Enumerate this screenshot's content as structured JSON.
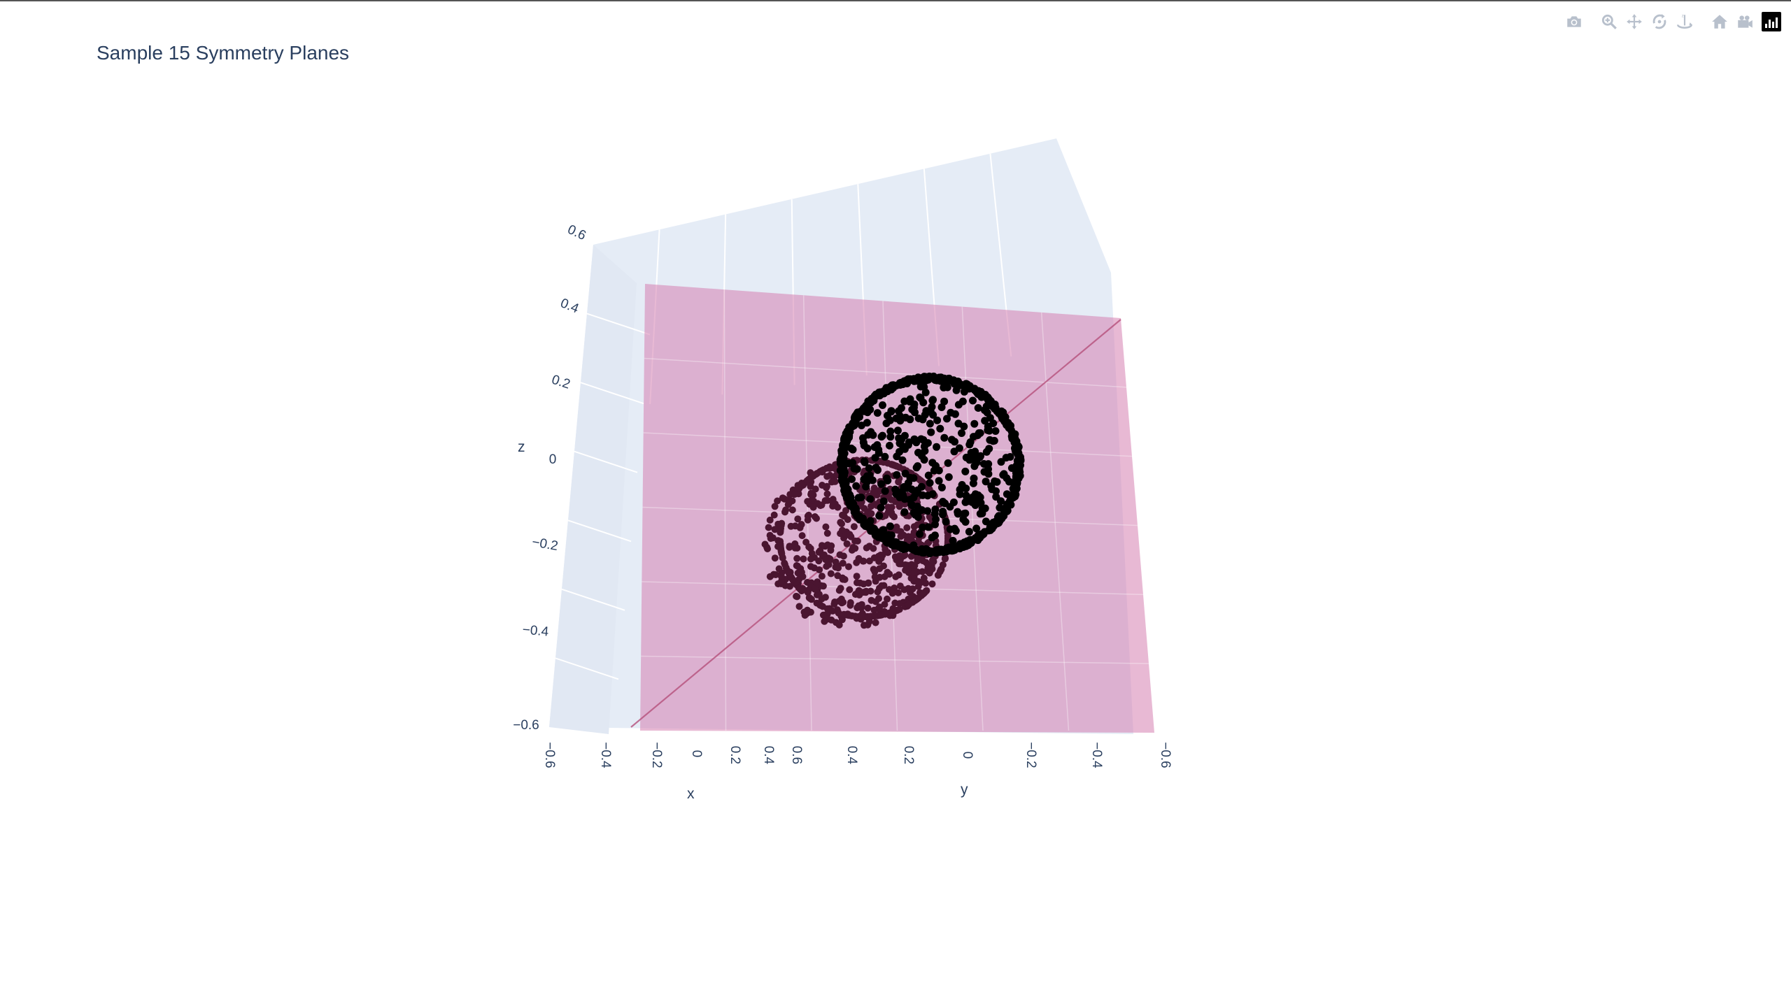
{
  "title": "Sample 15 Symmetry Planes",
  "modebar": {
    "buttons": [
      {
        "name": "camera-icon",
        "title": "Download plot as a png"
      },
      {
        "name": "zoom-icon",
        "title": "Zoom"
      },
      {
        "name": "pan-icon",
        "title": "Pan"
      },
      {
        "name": "orbit-rotation-icon",
        "title": "Orbital rotation"
      },
      {
        "name": "turntable-rotation-icon",
        "title": "Turntable rotation"
      },
      {
        "name": "home-icon",
        "title": "Reset camera to default"
      },
      {
        "name": "camera-video-icon",
        "title": "Reset camera to last save"
      },
      {
        "name": "plotly-logo-icon",
        "title": "Produced with Plotly"
      }
    ]
  },
  "colors": {
    "background": "#ffffff",
    "scene_bg": "#e5ecf6",
    "gridline": "#ffffff",
    "text": "#2a3f5f",
    "plane": "#d67fb0",
    "points_front": "#000000",
    "points_back": "#4a1530",
    "diagonal_line": "#b5507a"
  },
  "chart_data": {
    "type": "scatter3d",
    "title": "Sample 15 Symmetry Planes",
    "axes": {
      "x": {
        "title": "x",
        "range": [
          -0.6,
          0.6
        ],
        "ticks": [
          "−0.6",
          "−0.4",
          "−0.2",
          "0",
          "0.2",
          "0.4",
          "0.6"
        ]
      },
      "y": {
        "title": "y",
        "range": [
          -0.6,
          0.6
        ],
        "ticks": [
          "0.4",
          "0.2",
          "0",
          "−0.2",
          "−0.4",
          "−0.6"
        ]
      },
      "z": {
        "title": "z",
        "range": [
          -0.6,
          0.6
        ],
        "ticks": [
          "0.6",
          "0.4",
          "0.2",
          "0",
          "−0.2",
          "−0.4",
          "−0.6"
        ]
      }
    },
    "grid": true,
    "series": [
      {
        "type": "surface",
        "description_color": "#d67fb0"
      },
      {
        "type": "markers",
        "shape": "sphere",
        "center": [
          0,
          0,
          0
        ],
        "radius": 0.3,
        "color": "#000000"
      },
      {
        "type": "markers",
        "shape": "reflected cluster",
        "color": "#4a1530"
      },
      {
        "type": "line",
        "color": "#b5507a"
      }
    ]
  }
}
